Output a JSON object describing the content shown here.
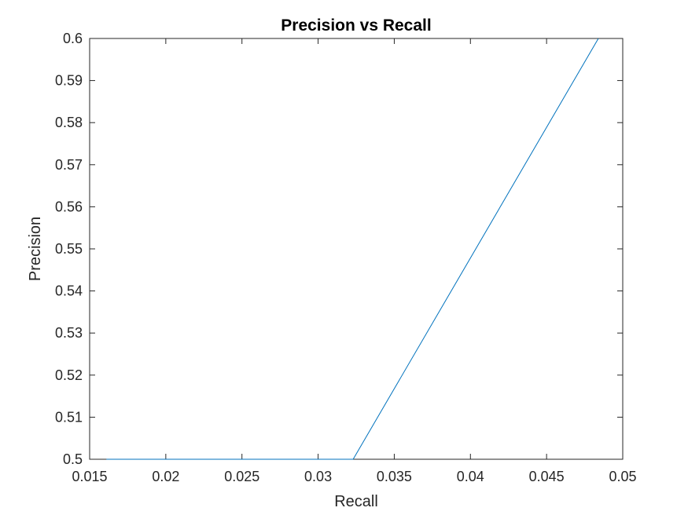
{
  "chart_data": {
    "type": "line",
    "title": "Precision vs Recall",
    "xlabel": "Recall",
    "ylabel": "Precision",
    "xlim": [
      0.015,
      0.05
    ],
    "ylim": [
      0.5,
      0.6
    ],
    "grid": false,
    "legend": "none",
    "x_ticks": [
      "0.015",
      "0.02",
      "0.025",
      "0.03",
      "0.035",
      "0.04",
      "0.045",
      "0.05"
    ],
    "y_ticks": [
      "0.5",
      "0.51",
      "0.52",
      "0.53",
      "0.54",
      "0.55",
      "0.56",
      "0.57",
      "0.58",
      "0.59",
      "0.6"
    ],
    "series": [
      {
        "color": "#0072bd",
        "x": [
          0.0161,
          0.0323,
          0.0484
        ],
        "y": [
          0.5,
          0.5,
          0.6
        ]
      }
    ]
  }
}
